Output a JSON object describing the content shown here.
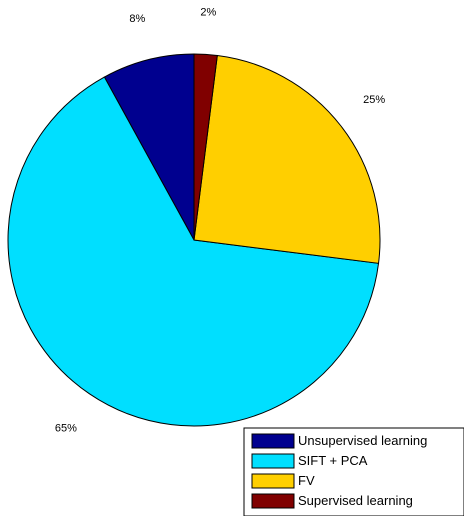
{
  "chart_data": {
    "type": "pie",
    "slices": [
      {
        "name": "Unsupervised learning",
        "value": 8,
        "label": "8%",
        "color": "#00008F"
      },
      {
        "name": "SIFT + PCA",
        "value": 65,
        "label": "65%",
        "color": "#00DFFF"
      },
      {
        "name": "FV",
        "value": 25,
        "label": "25%",
        "color": "#FFCF00"
      },
      {
        "name": "Supervised learning",
        "value": 2,
        "label": "2%",
        "color": "#800000"
      }
    ],
    "legend_position": "bottom-right",
    "outline_color": "#000000"
  }
}
